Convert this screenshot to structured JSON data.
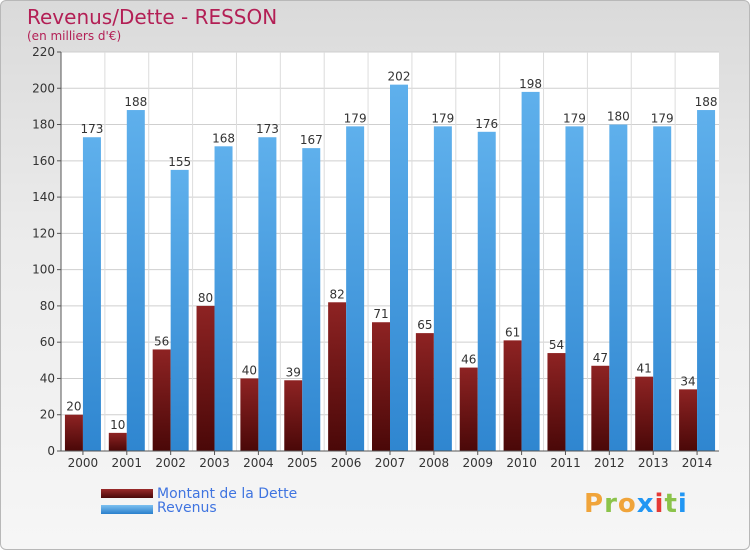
{
  "title": "Revenus/Dette - RESSON",
  "unit_label": "(en milliers d'€)",
  "brand": "Proxiti",
  "colors": {
    "title": "#b31f55",
    "debt": "#6b1414",
    "revenue": "#3a96dd",
    "legend_text": "#3f74e0"
  },
  "chart_data": {
    "type": "bar",
    "categories": [
      "2000",
      "2001",
      "2002",
      "2003",
      "2004",
      "2005",
      "2006",
      "2007",
      "2008",
      "2009",
      "2010",
      "2011",
      "2012",
      "2013",
      "2014"
    ],
    "series": [
      {
        "name": "Montant de la Dette",
        "values": [
          20,
          10,
          56,
          80,
          40,
          39,
          82,
          71,
          65,
          46,
          61,
          54,
          47,
          41,
          34
        ]
      },
      {
        "name": "Revenus",
        "values": [
          173,
          188,
          155,
          168,
          173,
          167,
          179,
          202,
          179,
          176,
          198,
          179,
          180,
          179,
          188
        ]
      }
    ],
    "yticks": [
      0,
      20,
      40,
      60,
      80,
      100,
      120,
      140,
      160,
      180,
      200,
      220
    ],
    "ylim": [
      0,
      220
    ],
    "grid": true,
    "legend_position": "bottom-left"
  }
}
